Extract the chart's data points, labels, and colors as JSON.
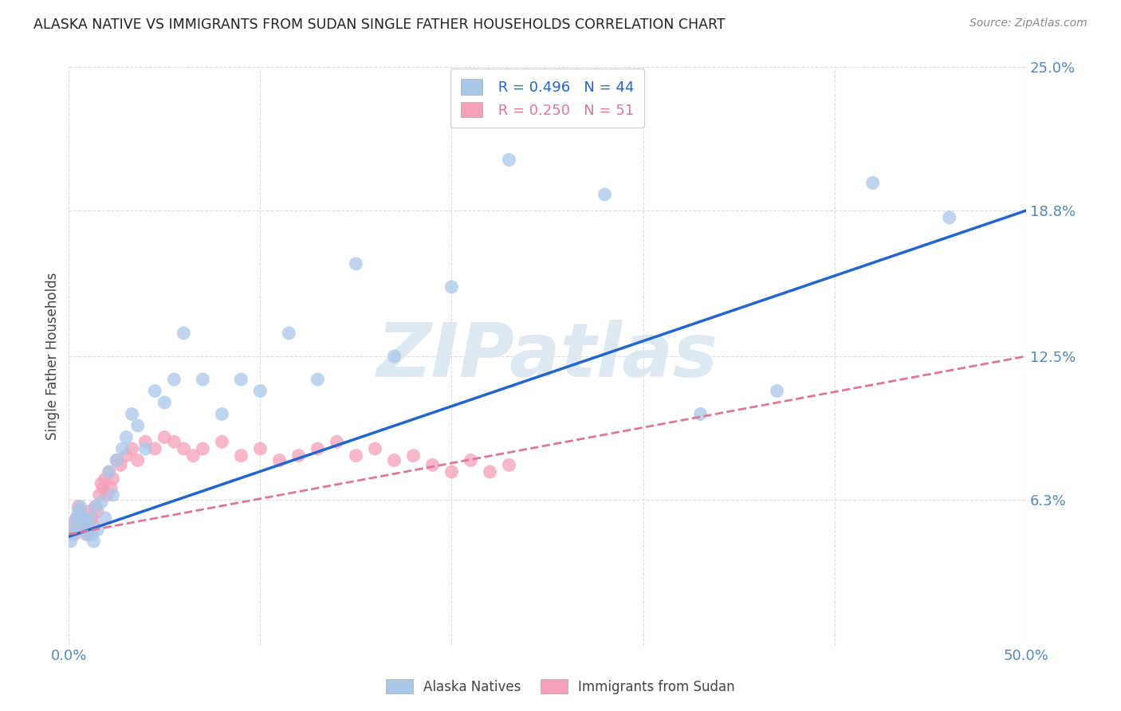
{
  "title": "ALASKA NATIVE VS IMMIGRANTS FROM SUDAN SINGLE FATHER HOUSEHOLDS CORRELATION CHART",
  "source": "Source: ZipAtlas.com",
  "ylabel": "Single Father Households",
  "xlim": [
    0.0,
    0.5
  ],
  "ylim": [
    0.0,
    0.25
  ],
  "ytick_labels_right": [
    "25.0%",
    "18.8%",
    "12.5%",
    "6.3%"
  ],
  "ytick_values_right": [
    0.25,
    0.188,
    0.125,
    0.063
  ],
  "alaska_scatter_x": [
    0.001,
    0.002,
    0.003,
    0.004,
    0.005,
    0.006,
    0.007,
    0.008,
    0.009,
    0.01,
    0.011,
    0.012,
    0.013,
    0.014,
    0.015,
    0.017,
    0.019,
    0.021,
    0.023,
    0.025,
    0.028,
    0.03,
    0.033,
    0.036,
    0.04,
    0.045,
    0.05,
    0.055,
    0.06,
    0.07,
    0.08,
    0.09,
    0.1,
    0.115,
    0.13,
    0.15,
    0.17,
    0.2,
    0.23,
    0.28,
    0.33,
    0.37,
    0.42,
    0.46
  ],
  "alaska_scatter_y": [
    0.045,
    0.048,
    0.052,
    0.055,
    0.058,
    0.06,
    0.05,
    0.055,
    0.048,
    0.052,
    0.055,
    0.048,
    0.045,
    0.06,
    0.05,
    0.062,
    0.055,
    0.075,
    0.065,
    0.08,
    0.085,
    0.09,
    0.1,
    0.095,
    0.085,
    0.11,
    0.105,
    0.115,
    0.135,
    0.115,
    0.1,
    0.115,
    0.11,
    0.135,
    0.115,
    0.165,
    0.125,
    0.155,
    0.21,
    0.195,
    0.1,
    0.11,
    0.2,
    0.185
  ],
  "sudan_scatter_x": [
    0.001,
    0.002,
    0.003,
    0.004,
    0.005,
    0.006,
    0.007,
    0.008,
    0.009,
    0.01,
    0.011,
    0.012,
    0.013,
    0.014,
    0.015,
    0.016,
    0.017,
    0.018,
    0.019,
    0.02,
    0.021,
    0.022,
    0.023,
    0.025,
    0.027,
    0.03,
    0.033,
    0.036,
    0.04,
    0.045,
    0.05,
    0.055,
    0.06,
    0.065,
    0.07,
    0.08,
    0.09,
    0.1,
    0.11,
    0.12,
    0.13,
    0.14,
    0.15,
    0.16,
    0.17,
    0.18,
    0.19,
    0.2,
    0.21,
    0.22,
    0.23
  ],
  "sudan_scatter_y": [
    0.052,
    0.05,
    0.048,
    0.055,
    0.06,
    0.058,
    0.055,
    0.052,
    0.05,
    0.048,
    0.058,
    0.055,
    0.052,
    0.06,
    0.058,
    0.065,
    0.07,
    0.068,
    0.072,
    0.065,
    0.075,
    0.068,
    0.072,
    0.08,
    0.078,
    0.082,
    0.085,
    0.08,
    0.088,
    0.085,
    0.09,
    0.088,
    0.085,
    0.082,
    0.085,
    0.088,
    0.082,
    0.085,
    0.08,
    0.082,
    0.085,
    0.088,
    0.082,
    0.085,
    0.08,
    0.082,
    0.078,
    0.075,
    0.08,
    0.075,
    0.078
  ],
  "alaska_line_x": [
    0.0,
    0.5
  ],
  "alaska_line_y": [
    0.047,
    0.188
  ],
  "sudan_line_x": [
    0.0,
    0.5
  ],
  "sudan_line_y": [
    0.048,
    0.125
  ],
  "scatter_color_alaska": "#a8c8e8",
  "scatter_color_sudan": "#f4a0b8",
  "line_color_alaska": "#2266cc",
  "line_color_sudan": "#dd7799",
  "watermark_text": "ZIPatlas",
  "watermark_color": "#dde8f0",
  "background_color": "#ffffff",
  "grid_color": "#dddddd"
}
